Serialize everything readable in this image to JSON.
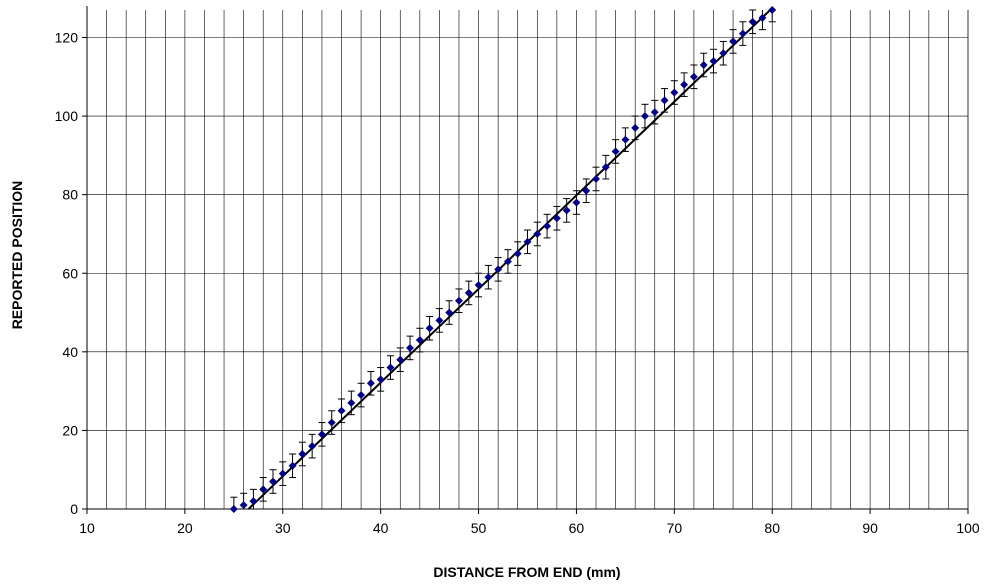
{
  "chart_data": {
    "type": "scatter",
    "xlabel": "DISTANCE FROM END (mm)",
    "ylabel": "REPORTED POSITION",
    "xlim": [
      10,
      100
    ],
    "ylim": [
      0,
      127
    ],
    "x_ticks": [
      10,
      20,
      30,
      40,
      50,
      60,
      70,
      80,
      90,
      100
    ],
    "y_ticks": [
      0,
      20,
      40,
      60,
      80,
      100,
      120
    ],
    "x_minor_step": 2,
    "grid": true,
    "legend": "none",
    "marker_color": "#00008B",
    "line_color": "#000000",
    "error_bar_half_width": 3,
    "series": [
      {
        "x": [
          25,
          26,
          27,
          28,
          29,
          30,
          31,
          32,
          33,
          34,
          35,
          36,
          37,
          38,
          39,
          40,
          41,
          42,
          43,
          44,
          45,
          46,
          47,
          48,
          49,
          50,
          51,
          52,
          53,
          54,
          55,
          56,
          57,
          58,
          59,
          60,
          61,
          62,
          63,
          64,
          65,
          66,
          67,
          68,
          69,
          70,
          71,
          72,
          73,
          74,
          75,
          76,
          77,
          78,
          79,
          80
        ],
        "y": [
          0,
          1,
          2,
          5,
          7,
          9,
          11,
          14,
          16,
          19,
          22,
          25,
          27,
          29,
          32,
          33,
          36,
          38,
          41,
          43,
          46,
          48,
          50,
          53,
          55,
          57,
          59,
          61,
          63,
          65,
          68,
          70,
          72,
          74,
          76,
          78,
          81,
          84,
          87,
          91,
          94,
          97,
          100,
          101,
          104,
          106,
          108,
          110,
          113,
          114,
          116,
          119,
          121,
          124,
          125,
          127
        ]
      }
    ],
    "trendline": {
      "x": [
        26.5,
        80
      ],
      "y": [
        0,
        127.5
      ]
    }
  }
}
